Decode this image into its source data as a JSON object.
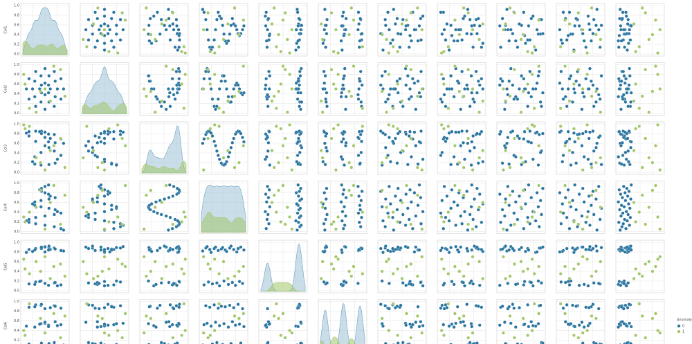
{
  "chart_data": {
    "type": "pairplot",
    "variables": [
      "Col1",
      "Col2",
      "Col3",
      "Col4",
      "Col5",
      "Col6",
      null,
      null,
      null,
      null,
      null
    ],
    "rows": 6,
    "xlim": [
      0,
      1
    ],
    "ylim": [
      0,
      1
    ],
    "yticks": [
      {
        "value": 0,
        "label": "0.0"
      },
      {
        "value": 0.2,
        "label": "0.2"
      },
      {
        "value": 0.4,
        "label": "0.4"
      },
      {
        "value": 0.6,
        "label": "0.6"
      },
      {
        "value": 0.8,
        "label": "0.8"
      },
      {
        "value": 1,
        "label": "1.0"
      }
    ],
    "grid": true,
    "legend_title": "Anomaly",
    "legend": "right",
    "series": [
      {
        "name": "0",
        "color": "#2a75a0",
        "columns": [
          [
            0.92,
            0.86,
            0.71,
            0.5,
            0.29,
            0.14,
            0.08,
            0.14,
            0.29,
            0.5,
            0.71,
            0.86,
            0.78,
            0.73,
            0.59,
            0.41,
            0.27,
            0.22,
            0.27,
            0.41,
            0.59,
            0.73,
            0.62,
            0.58,
            0.5,
            0.42,
            0.38,
            0.42,
            0.5,
            0.58
          ],
          [
            0.5,
            0.71,
            0.86,
            0.92,
            0.86,
            0.71,
            0.5,
            0.29,
            0.14,
            0.08,
            0.14,
            0.29,
            0.5,
            0.66,
            0.77,
            0.77,
            0.66,
            0.5,
            0.34,
            0.23,
            0.23,
            0.34,
            0.5,
            0.58,
            0.62,
            0.58,
            0.5,
            0.42,
            0.38,
            0.42
          ],
          [
            0.6,
            0.69,
            0.78,
            0.83,
            0.85,
            0.84,
            0.81,
            0.75,
            0.64,
            0.55,
            0.44,
            0.35,
            0.27,
            0.19,
            0.16,
            0.15,
            0.17,
            0.22,
            0.32,
            0.41,
            0.51,
            0.61,
            0.7,
            0.79,
            0.83,
            0.85,
            0.84,
            0.8,
            0.72,
            0.63
          ],
          [
            0.03,
            0.06,
            0.1,
            0.13,
            0.16,
            0.19,
            0.22,
            0.25,
            0.29,
            0.32,
            0.35,
            0.38,
            0.41,
            0.45,
            0.48,
            0.51,
            0.54,
            0.57,
            0.61,
            0.64,
            0.67,
            0.7,
            0.73,
            0.77,
            0.8,
            0.83,
            0.86,
            0.89,
            0.93,
            0.96
          ],
          [
            0.82,
            0.12,
            0.88,
            0.91,
            0.18,
            0.85,
            0.79,
            0.14,
            0.87,
            0.9,
            0.16,
            0.83,
            0.1,
            0.86,
            0.89,
            0.2,
            0.84,
            0.81,
            0.13,
            0.88,
            0.92,
            0.17,
            0.85,
            0.11,
            0.8,
            0.87,
            0.19,
            0.9,
            0.15,
            0.84
          ],
          [
            0.1,
            0.52,
            0.91,
            0.55,
            0.08,
            0.88,
            0.49,
            0.12,
            0.93,
            0.57,
            0.15,
            0.86,
            0.5,
            0.9,
            0.11,
            0.54,
            0.89,
            0.06,
            0.47,
            0.92,
            0.13,
            0.58,
            0.87,
            0.51,
            0.09,
            0.94,
            0.53,
            0.14,
            0.85,
            0.48
          ],
          [
            0.31,
            0.74,
            0.12,
            0.58,
            0.93,
            0.45,
            0.07,
            0.66,
            0.29,
            0.81,
            0.52,
            0.18,
            0.97,
            0.39,
            0.63,
            0.05,
            0.86,
            0.24,
            0.71,
            0.47,
            0.13,
            0.92,
            0.35,
            0.59,
            0.78,
            0.02,
            0.68,
            0.41,
            0.21,
            0.89
          ],
          [
            0.64,
            0.09,
            0.83,
            0.37,
            0.51,
            0.95,
            0.22,
            0.76,
            0.14,
            0.48,
            0.69,
            0.03,
            0.57,
            0.88,
            0.26,
            0.72,
            0.41,
            0.98,
            0.33,
            0.06,
            0.79,
            0.54,
            0.17,
            0.91,
            0.44,
            0.62,
            0.28,
            0.85,
            0.11,
            0.73
          ],
          [
            0.18,
            0.56,
            0.91,
            0.27,
            0.7,
            0.04,
            0.83,
            0.42,
            0.65,
            0.13,
            0.96,
            0.34,
            0.77,
            0.08,
            0.51,
            0.89,
            0.23,
            0.6,
            0.38,
            0.94,
            0.15,
            0.73,
            0.46,
            0.02,
            0.86,
            0.31,
            0.58,
            0.99,
            0.2,
            0.67
          ],
          [
            0.87,
            0.25,
            0.43,
            0.71,
            0.06,
            0.62,
            0.35,
            0.94,
            0.19,
            0.53,
            0.8,
            0.11,
            0.67,
            0.4,
            0.97,
            0.28,
            0.74,
            0.09,
            0.58,
            0.32,
            0.85,
            0.16,
            0.69,
            0.47,
            0.03,
            0.78,
            0.22,
            0.55,
            0.91,
            0.37
          ],
          [
            0.05,
            0.18,
            0.09,
            0.26,
            0.12,
            0.02,
            0.21,
            0.15,
            0.28,
            0.07,
            0.23,
            0.11,
            0.19,
            0.04,
            0.27,
            0.14,
            0.08,
            0.24,
            0.01,
            0.17,
            0.29,
            0.1,
            0.22,
            0.06,
            0.16,
            0.25,
            0.03,
            0.2,
            0.13,
            0.3
          ]
        ]
      },
      {
        "name": "1",
        "color": "#a3c76b",
        "columns": [
          [
            0.05,
            0.95,
            0.3,
            0.7,
            0.5,
            0.15,
            0.85,
            0.4,
            0.62,
            0.02
          ],
          [
            0.6,
            0.35,
            0.02,
            0.97,
            0.5,
            0.1,
            0.9,
            0.45,
            0.25,
            0.8
          ],
          [
            0.9,
            0.1,
            0.3,
            0.55,
            0.05,
            0.95,
            0.7,
            0.2,
            0.45,
            0.98
          ],
          [
            0.2,
            0.75,
            0.5,
            0.95,
            0.05,
            0.4,
            0.15,
            0.85,
            0.6,
            0.3
          ],
          [
            0.45,
            0.3,
            0.6,
            0.5,
            0.7,
            0.35,
            0.55,
            0.4,
            0.25,
            0.65
          ],
          [
            0.3,
            0.7,
            0.05,
            0.75,
            0.35,
            0.95,
            0.25,
            0.65,
            0.02,
            0.4
          ],
          [
            0.4,
            0.85,
            0.15,
            0.6,
            0.95,
            0.3,
            0.7,
            0.05,
            0.5,
            0.2
          ],
          [
            0.1,
            0.55,
            0.9,
            0.35,
            0.75,
            0.2,
            0.65,
            0.45,
            0.98,
            0.05
          ],
          [
            0.65,
            0.25,
            0.5,
            0.9,
            0.1,
            0.8,
            0.35,
            0.55,
            0.15,
            0.75
          ],
          [
            0.35,
            0.75,
            0.95,
            0.15,
            0.55,
            0.05,
            0.45,
            0.85,
            0.25,
            0.65
          ],
          [
            0.4,
            0.55,
            0.7,
            0.85,
            0.95,
            0.48,
            0.62,
            0.78,
            0.36,
            0.9
          ]
        ]
      }
    ]
  }
}
